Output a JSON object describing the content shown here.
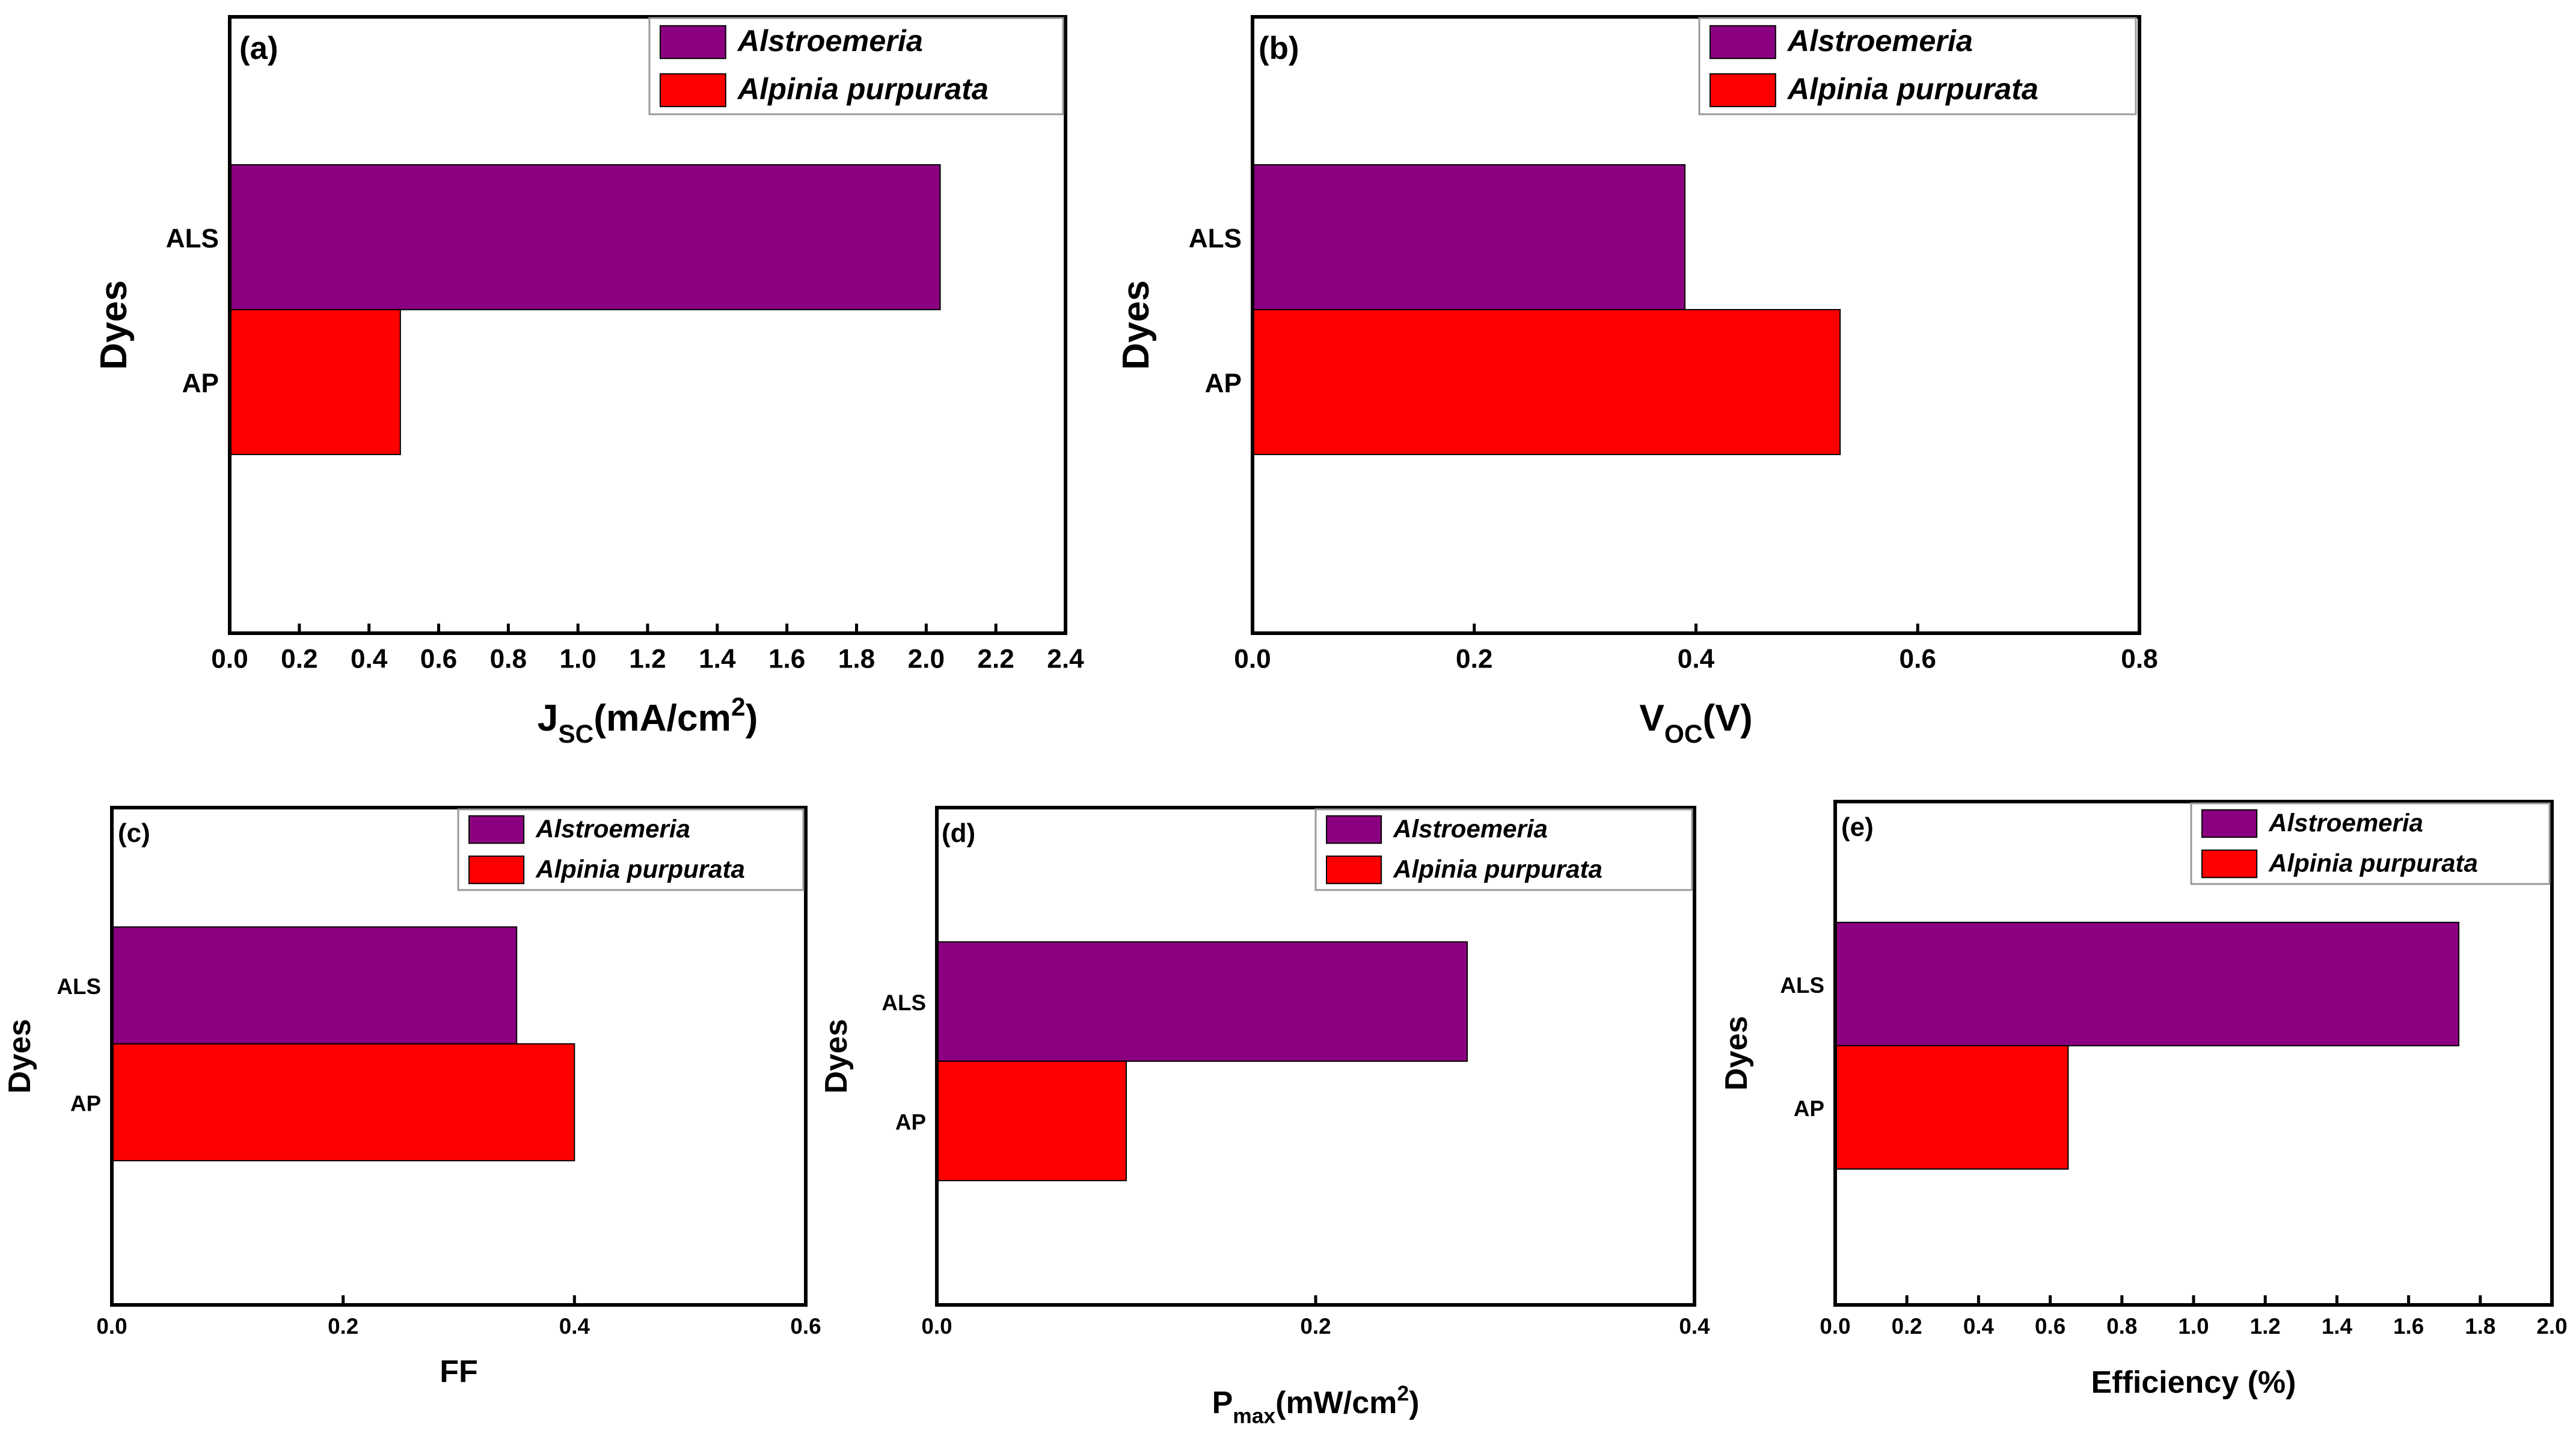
{
  "colors": {
    "alstroemeria": "#8B0080",
    "alpinia": "#FF0000"
  },
  "chart_data": [
    {
      "type": "bar",
      "orientation": "horizontal",
      "panel_label": "(a)",
      "categories": [
        "ALS",
        "AP"
      ],
      "series": [
        {
          "name": "Alstroemeria",
          "category": "ALS",
          "value": 2.04
        },
        {
          "name": "Alpinia purpurata",
          "category": "AP",
          "value": 0.49
        }
      ],
      "xlabel": "J",
      "xlabel_sub": "SC",
      "xlabel_rest": "(mA/cm",
      "xlabel_sup": "2",
      "xlabel_end": ")",
      "ylabel": "Dyes",
      "xlim": [
        0,
        2.4
      ],
      "xticks": [
        "0.0",
        "0.2",
        "0.4",
        "0.6",
        "0.8",
        "1.0",
        "1.2",
        "1.4",
        "1.6",
        "1.8",
        "2.0",
        "2.2",
        "2.4"
      ],
      "legend": [
        "Alstroemeria",
        "Alpinia purpurata"
      ],
      "legend_position": "top-right"
    },
    {
      "type": "bar",
      "orientation": "horizontal",
      "panel_label": "(b)",
      "categories": [
        "ALS",
        "AP"
      ],
      "series": [
        {
          "name": "Alstroemeria",
          "category": "ALS",
          "value": 0.39
        },
        {
          "name": "Alpinia purpurata",
          "category": "AP",
          "value": 0.53
        }
      ],
      "xlabel": "V",
      "xlabel_sub": "OC",
      "xlabel_rest": "(V)",
      "xlabel_sup": "",
      "xlabel_end": "",
      "ylabel": "Dyes",
      "xlim": [
        0,
        0.8
      ],
      "xticks": [
        "0.0",
        "0.2",
        "0.4",
        "0.6",
        "0.8"
      ],
      "legend": [
        "Alstroemeria",
        "Alpinia purpurata"
      ],
      "legend_position": "top-right"
    },
    {
      "type": "bar",
      "orientation": "horizontal",
      "panel_label": "(c)",
      "categories": [
        "ALS",
        "AP"
      ],
      "series": [
        {
          "name": "Alstroemeria",
          "category": "ALS",
          "value": 0.35
        },
        {
          "name": "Alpinia purpurata",
          "category": "AP",
          "value": 0.4
        }
      ],
      "xlabel": "FF",
      "xlabel_sub": "",
      "xlabel_rest": "",
      "xlabel_sup": "",
      "xlabel_end": "",
      "ylabel": "Dyes",
      "xlim": [
        0,
        0.6
      ],
      "xticks": [
        "0.0",
        "0.2",
        "0.4",
        "0.6"
      ],
      "legend": [
        "Alstroemeria",
        "Alpinia purpurata"
      ],
      "legend_position": "top-right"
    },
    {
      "type": "bar",
      "orientation": "horizontal",
      "panel_label": "(d)",
      "categories": [
        "ALS",
        "AP"
      ],
      "series": [
        {
          "name": "Alstroemeria",
          "category": "ALS",
          "value": 0.28
        },
        {
          "name": "Alpinia purpurata",
          "category": "AP",
          "value": 0.1
        }
      ],
      "xlabel": "P",
      "xlabel_sub": "max",
      "xlabel_rest": "(mW/cm",
      "xlabel_sup": "2",
      "xlabel_end": ")",
      "ylabel": "Dyes",
      "xlim": [
        0,
        0.4
      ],
      "xticks": [
        "0.0",
        "0.2",
        "0.4"
      ],
      "legend": [
        "Alstroemeria",
        "Alpinia purpurata"
      ],
      "legend_position": "top-right"
    },
    {
      "type": "bar",
      "orientation": "horizontal",
      "panel_label": "(e)",
      "categories": [
        "ALS",
        "AP"
      ],
      "series": [
        {
          "name": "Alstroemeria",
          "category": "ALS",
          "value": 1.74
        },
        {
          "name": "Alpinia purpurata",
          "category": "AP",
          "value": 0.65
        }
      ],
      "xlabel": "Efficiency (%)",
      "xlabel_sub": "",
      "xlabel_rest": "",
      "xlabel_sup": "",
      "xlabel_end": "",
      "ylabel": "Dyes",
      "xlim": [
        0,
        2.0
      ],
      "xticks": [
        "0.0",
        "0.2",
        "0.4",
        "0.6",
        "0.8",
        "1.0",
        "1.2",
        "1.4",
        "1.6",
        "1.8",
        "2.0"
      ],
      "legend": [
        "Alstroemeria",
        "Alpinia purpurata"
      ],
      "legend_position": "top-right"
    }
  ]
}
